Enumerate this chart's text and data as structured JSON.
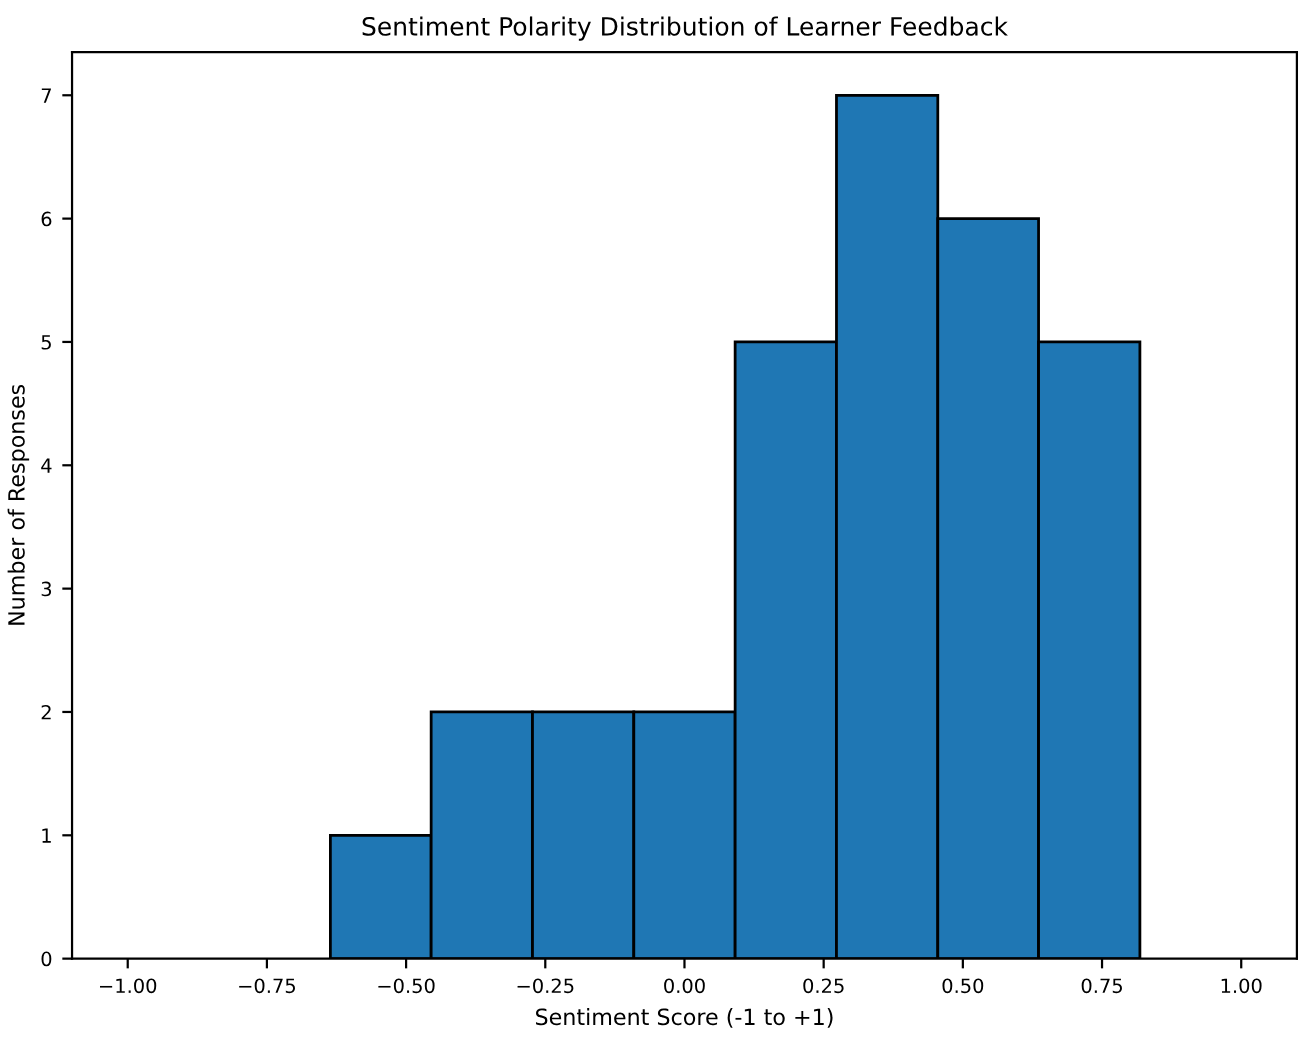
{
  "chart_data": {
    "type": "histogram",
    "title": "Sentiment Polarity Distribution of Learner Feedback",
    "xlabel": "Sentiment Score (-1 to +1)",
    "ylabel": "Number of Responses",
    "bins": [
      -0.636,
      -0.455,
      -0.273,
      -0.091,
      0.091,
      0.273,
      0.455,
      0.636,
      0.818
    ],
    "values": [
      1,
      2,
      2,
      2,
      5,
      7,
      6,
      5
    ],
    "color": "#1f77b4",
    "xlim": [
      -1.1,
      1.1
    ],
    "xticks": [
      {
        "value": -1,
        "label": "−1.00"
      },
      {
        "value": -0.75,
        "label": "−0.75"
      },
      {
        "value": -0.5,
        "label": "−0.50"
      },
      {
        "value": -0.25,
        "label": "−0.25"
      },
      {
        "value": 0,
        "label": "0.00"
      },
      {
        "value": 0.25,
        "label": "0.25"
      },
      {
        "value": 0.5,
        "label": "0.50"
      },
      {
        "value": 0.75,
        "label": "0.75"
      },
      {
        "value": 1,
        "label": "1.00"
      }
    ],
    "ylim": [
      0,
      7.35
    ],
    "yticks": [
      0,
      1,
      2,
      3,
      4,
      5,
      6,
      7
    ],
    "grid": false
  }
}
